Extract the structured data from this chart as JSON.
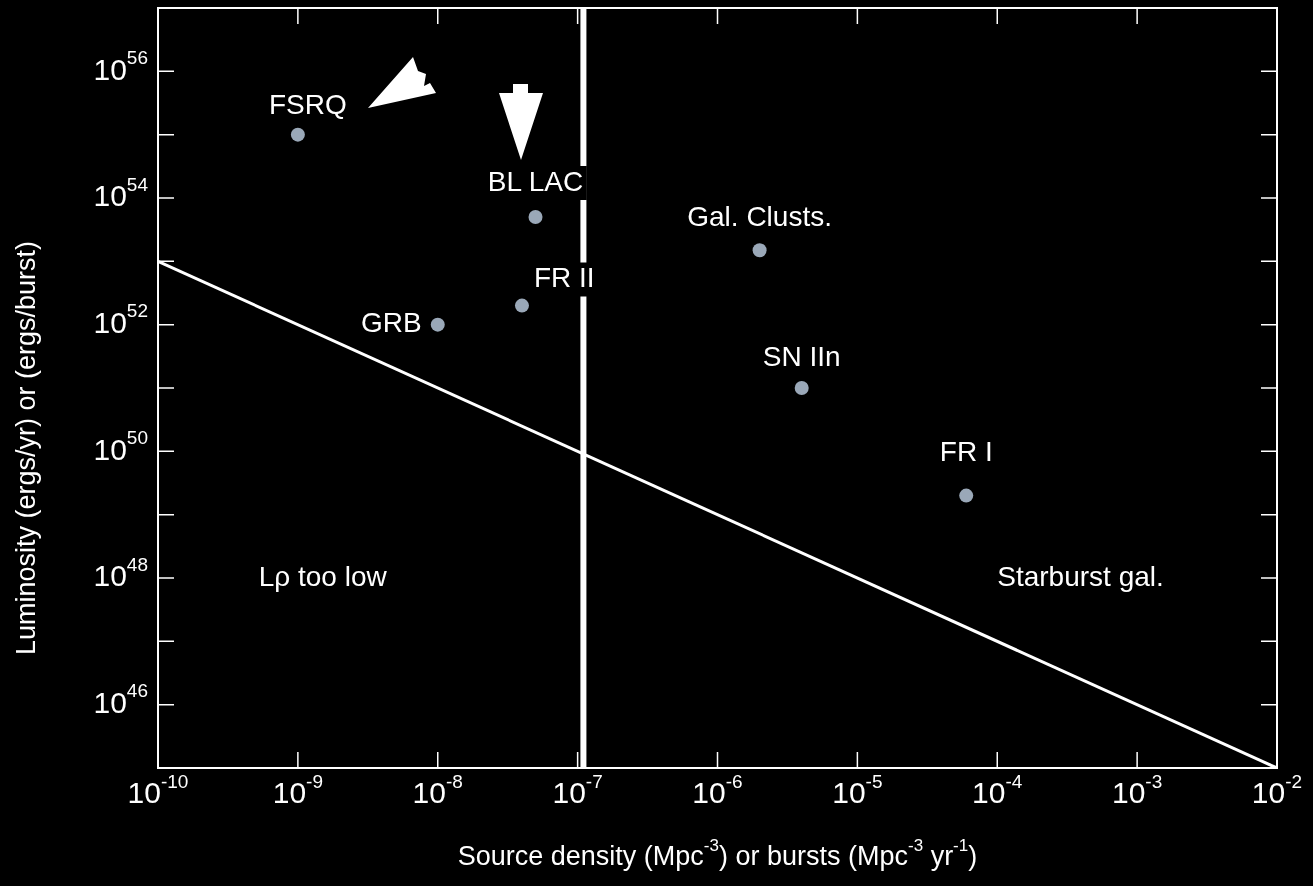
{
  "chart_data": {
    "type": "scatter",
    "xlabel": "Source density (Mpc$^{-3}$) or bursts (Mpc$^{-3}$ yr$^{-1}$)",
    "ylabel": "Luminosity (ergs/yr) or (ergs/burst)",
    "log": "xy",
    "grid": false,
    "legend": false,
    "marker": "circle",
    "xlim": [
      1e-10,
      0.01
    ],
    "xticks": [
      {
        "value": 1e-10,
        "label": "10$^{-10}$"
      },
      {
        "value": 1e-09,
        "label": "10$^{-9}$"
      },
      {
        "value": 1e-08,
        "label": "10$^{-8}$"
      },
      {
        "value": 1e-07,
        "label": "10$^{-7}$"
      },
      {
        "value": 1e-06,
        "label": "10$^{-6}$"
      },
      {
        "value": 1e-05,
        "label": "10$^{-5}$"
      },
      {
        "value": 0.0001,
        "label": "10$^{-4}$"
      },
      {
        "value": 0.001,
        "label": "10$^{-3}$"
      },
      {
        "value": 0.01,
        "label": "10$^{-2}$"
      }
    ],
    "ylim": [
      1e+45,
      1e+57
    ],
    "yticks": [
      {
        "value": 1e+46,
        "label": "10$^{46}$"
      },
      {
        "value": 1e+47,
        "label": null
      },
      {
        "value": 1e+48,
        "label": "10$^{48}$"
      },
      {
        "value": 1e+49,
        "label": null
      },
      {
        "value": 1e+50,
        "label": "10$^{50}$"
      },
      {
        "value": 1e+51,
        "label": null
      },
      {
        "value": 1e+52,
        "label": "10$^{52}$"
      },
      {
        "value": 1e+53,
        "label": null
      },
      {
        "value": 1e+54,
        "label": "10$^{54}$"
      },
      {
        "value": 1e+55,
        "label": null
      },
      {
        "value": 1e+56,
        "label": "10$^{56}$"
      }
    ],
    "series": [
      {
        "color": "#9aa8b8",
        "x": [
          1e-09,
          5e-08,
          4e-08,
          1e-08,
          2e-06,
          4e-06,
          6e-05
        ],
        "values": [
          1e+55,
          5e+53,
          2e+52,
          1e+52,
          1.5e+53,
          1e+51,
          2e+49
        ]
      },
      {
        "type": "line",
        "color": "#ffffff",
        "marker": "none",
        "x": [
          1e-10,
          0.01
        ],
        "values": [
          1e+53,
          1e+45
        ]
      }
    ],
    "ref_lines": [
      {
        "axis": "x",
        "value": 1.1e-07,
        "color": "#ffffff"
      }
    ],
    "annotations": [
      {
        "text": "FSRQ",
        "x": 1e-09,
        "y": 1e+55
      },
      {
        "text": "BL LAC",
        "x": 5e-08,
        "y": 5e+53
      },
      {
        "text": "FR II",
        "x": 4e-08,
        "y": 2e+52
      },
      {
        "text": "GRB",
        "x": 1e-08,
        "y": 1e+52
      },
      {
        "text": "Gal. Clusts.",
        "x": 2e-06,
        "y": 1.5e+53
      },
      {
        "text": "SN IIn",
        "x": 4e-06,
        "y": 1e+51
      },
      {
        "text": "FR I",
        "x": 6e-05,
        "y": 2e+49
      },
      "Lρ too low",
      "Starburst gal."
    ]
  }
}
